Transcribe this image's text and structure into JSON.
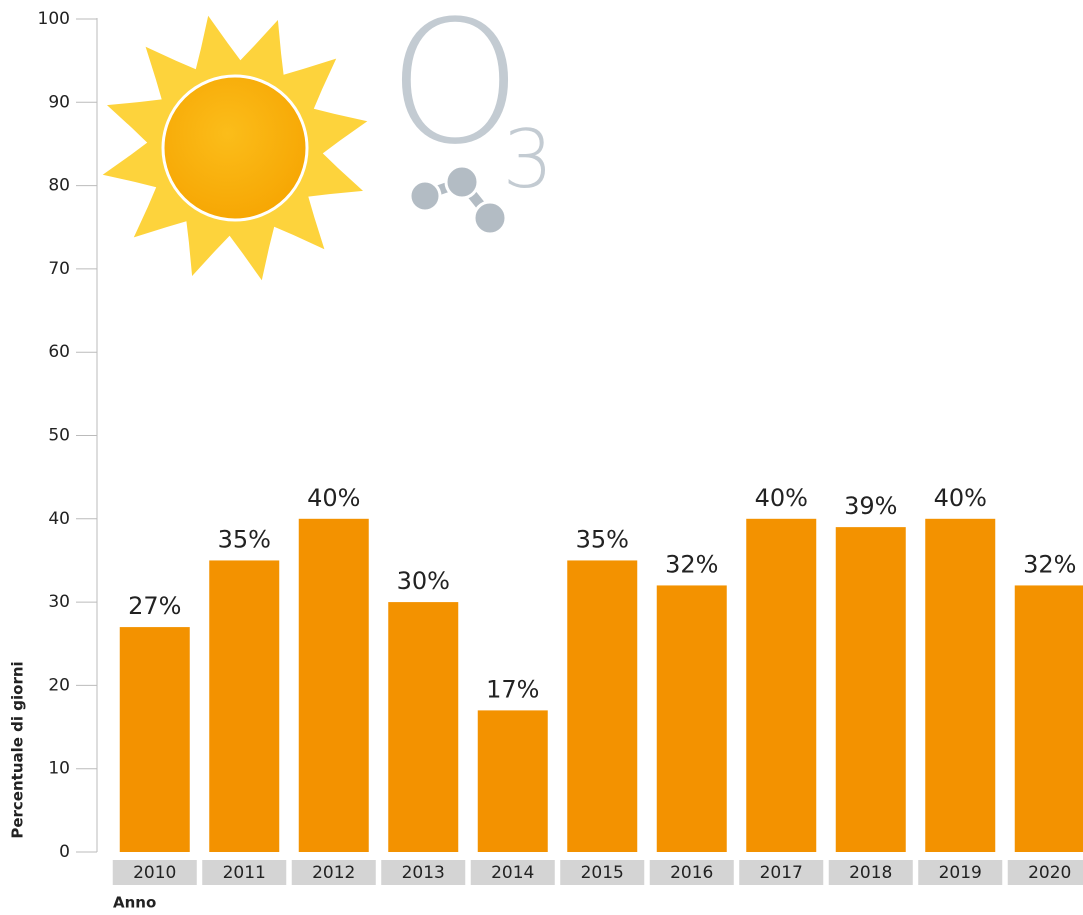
{
  "chart_data": {
    "type": "bar",
    "y_label": "Percentuale di giorni",
    "x_label": "Anno",
    "icon": {
      "text": "O",
      "subscript": "3"
    },
    "categories": [
      "2010",
      "2011",
      "2012",
      "2013",
      "2014",
      "2015",
      "2016",
      "2017",
      "2018",
      "2019",
      "2020"
    ],
    "values": [
      27,
      35,
      40,
      30,
      17,
      35,
      32,
      40,
      39,
      40,
      32
    ],
    "value_labels": [
      "27%",
      "35%",
      "40%",
      "30%",
      "17%",
      "35%",
      "32%",
      "40%",
      "39%",
      "40%",
      "32%"
    ],
    "color": "#f39200",
    "ylim": [
      0,
      100
    ],
    "yticks": [
      0,
      10,
      20,
      30,
      40,
      50,
      60,
      70,
      80,
      90,
      100
    ]
  }
}
